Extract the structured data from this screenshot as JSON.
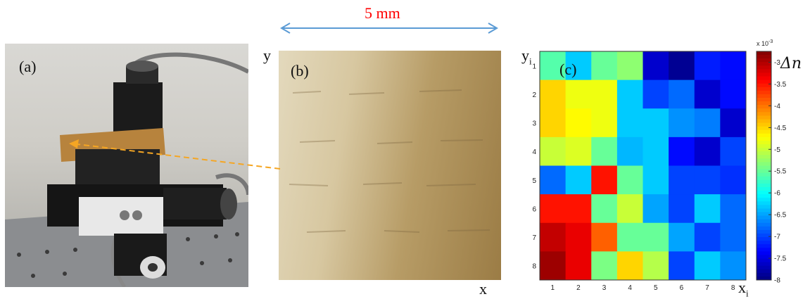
{
  "panels": {
    "a": {
      "label": "(a)"
    },
    "b": {
      "label": "(b)",
      "scale_text": "5 mm",
      "x_label": "x",
      "y_label": "y"
    },
    "c": {
      "label": "(c)",
      "x_label": "x",
      "x_sub": "i",
      "y_label": "y",
      "y_sub": "i",
      "colorbar_title": "Δn",
      "colorbar_exponent": "x 10",
      "colorbar_exponent_power": "-3"
    }
  },
  "colors": {
    "scale_arrow": "#5b9bd5",
    "dashed_arrow": "#f5a623",
    "scale_text": "#ff0000"
  },
  "chart_data": {
    "type": "heatmap",
    "x_ticks": [
      "1",
      "2",
      "3",
      "4",
      "5",
      "6",
      "7",
      "8"
    ],
    "y_ticks": [
      "1",
      "2",
      "3",
      "4",
      "5",
      "6",
      "7",
      "8"
    ],
    "colorbar_ticks": [
      "-3",
      "-3.5",
      "-4",
      "-4.5",
      "-5",
      "-5.5",
      "-6",
      "-6.5",
      "-7",
      "-7.5",
      "-8"
    ],
    "colorbar_range": [
      -8,
      -2.75
    ],
    "z": [
      [
        -5.6,
        -6.3,
        -5.5,
        -5.3,
        -7.6,
        -7.9,
        -7.2,
        -7.3
      ],
      [
        -4.5,
        -4.8,
        -4.8,
        -6.3,
        -7.0,
        -6.8,
        -7.6,
        -7.3
      ],
      [
        -4.5,
        -4.7,
        -4.8,
        -6.3,
        -6.3,
        -6.6,
        -6.7,
        -7.6
      ],
      [
        -5.0,
        -4.9,
        -5.5,
        -6.4,
        -6.3,
        -7.3,
        -7.6,
        -7.0
      ],
      [
        -6.8,
        -6.3,
        -3.5,
        -5.5,
        -6.3,
        -7.0,
        -7.0,
        -7.1
      ],
      [
        -3.5,
        -3.5,
        -5.5,
        -5.0,
        -6.5,
        -7.0,
        -6.3,
        -6.8
      ],
      [
        -3.1,
        -3.3,
        -3.9,
        -5.5,
        -5.5,
        -6.5,
        -7.0,
        -6.8
      ],
      [
        -2.9,
        -3.3,
        -5.4,
        -4.5,
        -5.1,
        -7.0,
        -6.3,
        -6.6
      ]
    ]
  }
}
